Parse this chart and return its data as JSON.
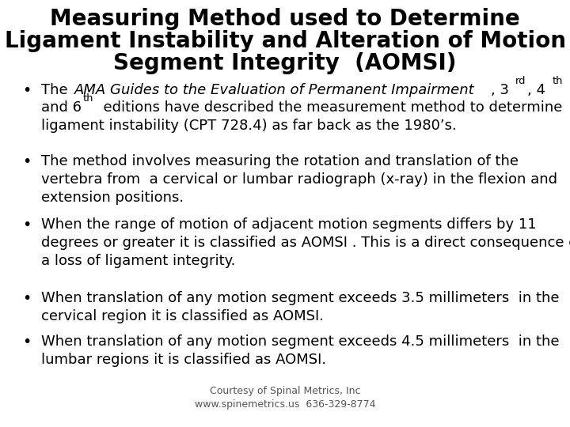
{
  "title_line1": "Measuring Method used to Determine",
  "title_line2": "Ligament Instability and Alteration of Motion",
  "title_line3": "Segment Integrity  (AOMSI)",
  "title_fontsize": 20,
  "title_color": "#000000",
  "background_color": "#ffffff",
  "bullet_fontsize": 13,
  "bullet_color": "#000000",
  "footer_text": "Courtesy of Spinal Metrics, Inc\nwww.spinemetrics.us  636-329-8774",
  "footer_fontsize": 9,
  "bullet2": "The method involves measuring the rotation and translation of the\nvertebra from  a cervical or lumbar radiograph (x-ray) in the flexion and\nextension positions.",
  "bullet3": "When the range of motion of adjacent motion segments differs by 11\ndegrees or greater it is classified as AOMSI . This is a direct consequence of\na loss of ligament integrity.",
  "bullet4": "When translation of any motion segment exceeds 3.5 millimeters  in the\ncervical region it is classified as AOMSI.",
  "bullet5": "When translation of any motion segment exceeds 4.5 millimeters  in the\nlumbar regions it is classified as AOMSI."
}
